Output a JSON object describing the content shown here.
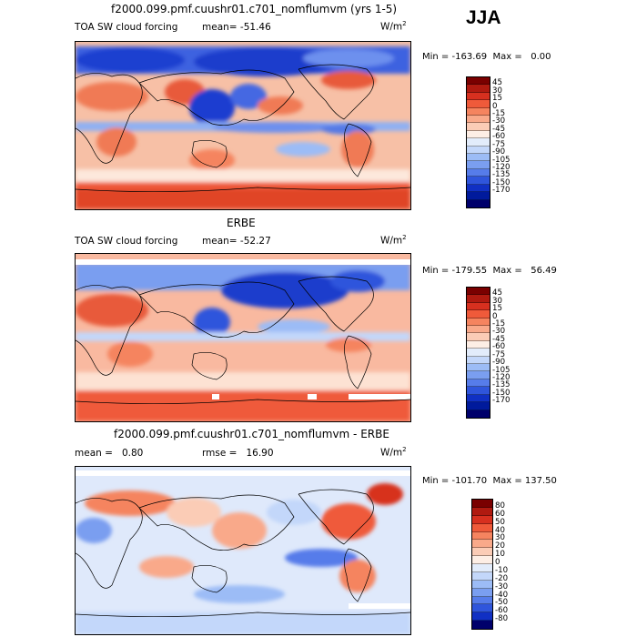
{
  "season": "JJA",
  "colors": {
    "ramp_standard": [
      "#7a0000",
      "#b01a10",
      "#d7301f",
      "#ef5a3a",
      "#f5845f",
      "#f9a98a",
      "#fbccb6",
      "#fdeee5",
      "#e2ecfb",
      "#c3d7fa",
      "#9cbcf6",
      "#7a9ef0",
      "#567cea",
      "#2f55dc",
      "#1030c4",
      "#001a9c",
      "#00006b"
    ],
    "ramp_diff": [
      "#7a0000",
      "#b01a10",
      "#d7301f",
      "#ef5a3a",
      "#f5845f",
      "#f9a98a",
      "#fbccb6",
      "#fdeee5",
      "#e2ecfb",
      "#c3d7fa",
      "#9cbcf6",
      "#7a9ef0",
      "#567cea",
      "#2f55dc",
      "#1030c4",
      "#00006b"
    ],
    "coast": "#000000"
  },
  "panels": [
    {
      "title": "f2000.099.pmf.cuushr01.c701_nomflumvm (yrs 1-5)",
      "left_label": "TOA SW cloud forcing",
      "mean_label": "mean=",
      "mean_value": "-51.46",
      "units": "W/m",
      "units_exp": "2",
      "min_label": "Min =",
      "min_value": "-163.69",
      "max_label": "Max =",
      "max_value": "0.00",
      "colorbar_ticks": [
        "45",
        "30",
        "15",
        "0",
        "-15",
        "-30",
        "-45",
        "-60",
        "-75",
        "-90",
        "-105",
        "-120",
        "-135",
        "-150",
        "-170"
      ]
    },
    {
      "title": "ERBE",
      "left_label": "TOA SW cloud forcing",
      "mean_label": "mean=",
      "mean_value": "-52.27",
      "units": "W/m",
      "units_exp": "2",
      "min_label": "Min =",
      "min_value": "-179.55",
      "max_label": "Max =",
      "max_value": "56.49",
      "colorbar_ticks": [
        "45",
        "30",
        "15",
        "0",
        "-15",
        "-30",
        "-45",
        "-60",
        "-75",
        "-90",
        "-105",
        "-120",
        "-135",
        "-150",
        "-170"
      ]
    },
    {
      "title": "f2000.099.pmf.cuushr01.c701_nomflumvm - ERBE",
      "left_label": "mean =",
      "mean_label": "",
      "mean_value": "0.80",
      "rmse_label": "rmse =",
      "rmse_value": "16.90",
      "units": "W/m",
      "units_exp": "2",
      "min_label": "Min =",
      "min_value": "-101.70",
      "max_label": "Max =",
      "max_value": "137.50",
      "colorbar_ticks": [
        "80",
        "60",
        "50",
        "40",
        "30",
        "20",
        "10",
        "0",
        "-10",
        "-20",
        "-30",
        "-40",
        "-50",
        "-60",
        "-80"
      ]
    }
  ]
}
